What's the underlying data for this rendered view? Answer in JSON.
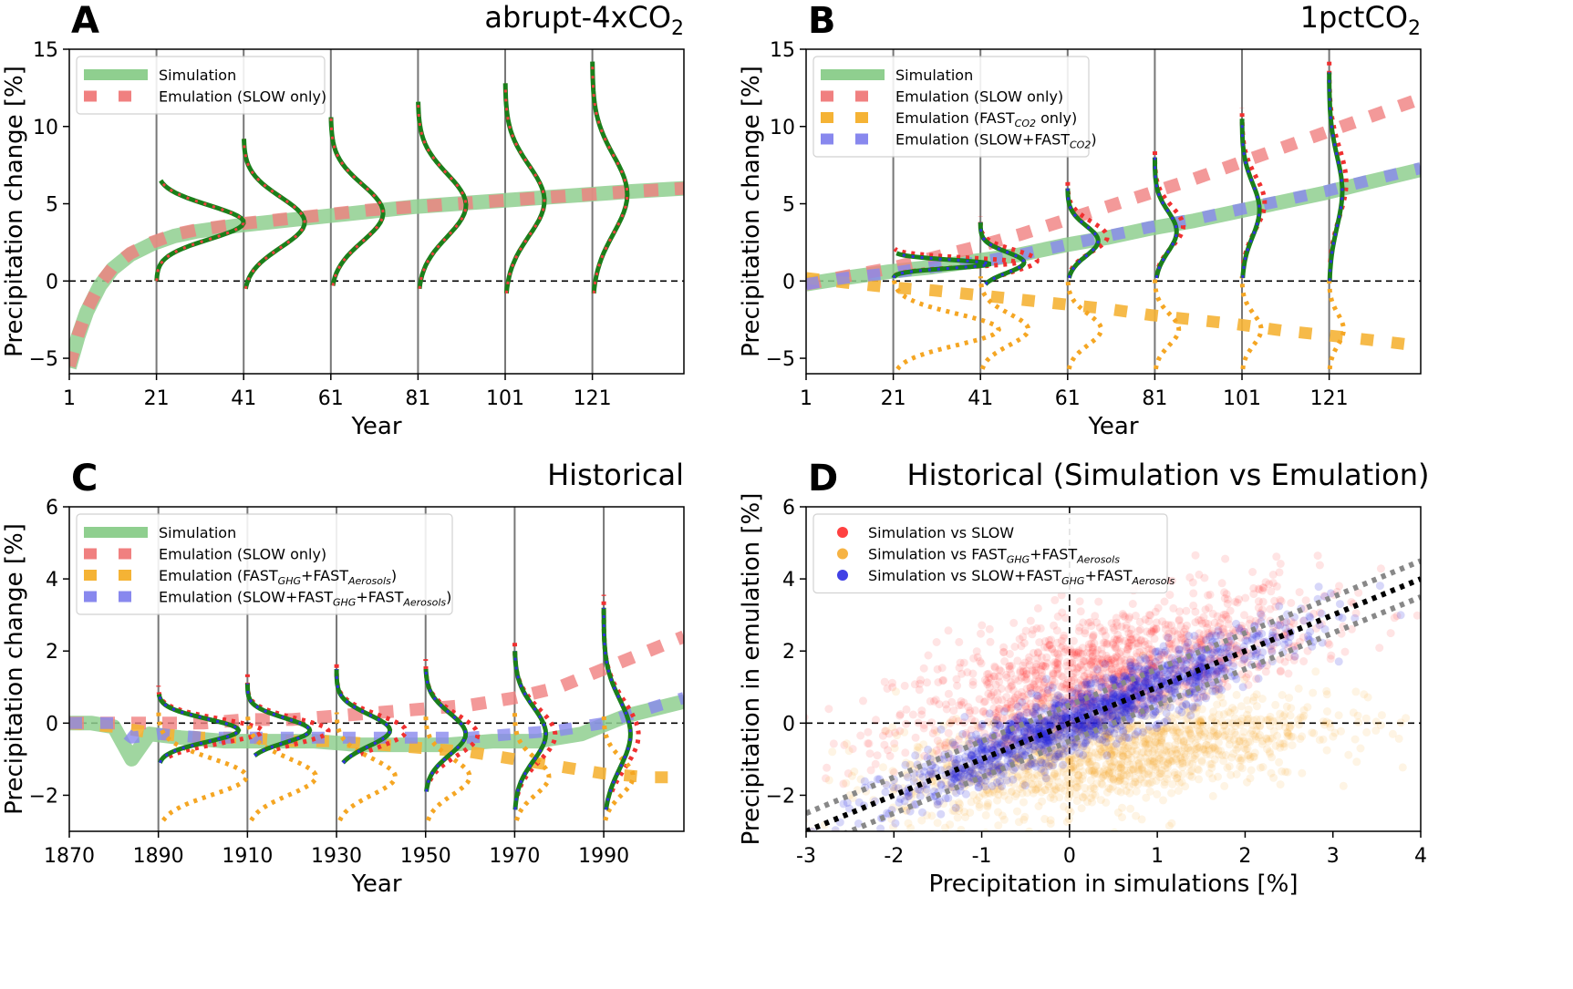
{
  "chart_data": [
    {
      "type": "line",
      "panel_letter": "A",
      "title": "abrupt-4xCO",
      "title_subscript": "2",
      "xlabel": "Year",
      "ylabel": "Precipitation change [%]",
      "xlim": [
        1,
        142
      ],
      "ylim": [
        -6,
        15
      ],
      "xticks": [
        1,
        21,
        41,
        61,
        81,
        101,
        121
      ],
      "yticks": [
        -5,
        0,
        5,
        10,
        15
      ],
      "legend_position": "top-left",
      "legend": [
        {
          "label": "Simulation",
          "sub": "",
          "suffix": ""
        },
        {
          "label": "Emulation (SLOW only)",
          "sub": "",
          "suffix": ""
        }
      ],
      "profile_years": [
        21,
        41,
        61,
        81,
        101,
        121
      ],
      "series": [
        {
          "name": "Simulation",
          "x": [
            1,
            3,
            5,
            8,
            11,
            15,
            20,
            25,
            30,
            40,
            50,
            60,
            70,
            80,
            90,
            100,
            110,
            120,
            130,
            142
          ],
          "y": [
            -5.6,
            -3.6,
            -2.0,
            -0.3,
            0.8,
            1.7,
            2.4,
            2.9,
            3.2,
            3.6,
            3.9,
            4.2,
            4.5,
            4.8,
            5.0,
            5.2,
            5.4,
            5.6,
            5.8,
            6.0
          ]
        },
        {
          "name": "Emulation (SLOW only)",
          "x": [
            1,
            3,
            5,
            8,
            11,
            15,
            20,
            25,
            30,
            40,
            50,
            60,
            70,
            80,
            90,
            100,
            110,
            120,
            130,
            142
          ],
          "y": [
            -5.5,
            -3.5,
            -1.9,
            -0.2,
            0.9,
            1.8,
            2.5,
            3.0,
            3.3,
            3.7,
            4.0,
            4.3,
            4.6,
            4.8,
            5.0,
            5.2,
            5.4,
            5.6,
            5.8,
            6.0
          ]
        }
      ],
      "profiles": [
        {
          "year": 21,
          "ymin": 0,
          "ymax": 6.5,
          "ypeak": 3.8,
          "width": 20
        },
        {
          "year": 41,
          "ymin": -0.5,
          "ymax": 9.2,
          "ypeak": 3.8,
          "width": 14
        },
        {
          "year": 61,
          "ymin": -0.3,
          "ymax": 10.6,
          "ypeak": 4.4,
          "width": 12
        },
        {
          "year": 81,
          "ymin": -0.5,
          "ymax": 11.6,
          "ypeak": 4.9,
          "width": 11
        },
        {
          "year": 101,
          "ymin": -0.8,
          "ymax": 12.8,
          "ypeak": 5.2,
          "width": 9
        },
        {
          "year": 121,
          "ymin": -0.8,
          "ymax": 14.2,
          "ypeak": 5.6,
          "width": 8
        }
      ]
    },
    {
      "type": "line",
      "panel_letter": "B",
      "title": "1pctCO",
      "title_subscript": "2",
      "xlabel": "Year",
      "ylabel": "Precipitation change [%]",
      "xlim": [
        1,
        142
      ],
      "ylim": [
        -6,
        15
      ],
      "xticks": [
        1,
        21,
        41,
        61,
        81,
        101,
        121
      ],
      "yticks": [
        -5,
        0,
        5,
        10,
        15
      ],
      "legend_position": "top-left",
      "legend": [
        {
          "label": "Simulation",
          "sub": "",
          "suffix": ""
        },
        {
          "label": "Emulation (SLOW only)",
          "sub": "",
          "suffix": ""
        },
        {
          "label": "Emulation (FAST",
          "sub": "CO2",
          "suffix": " only)"
        },
        {
          "label": "Emulation (SLOW+FAST",
          "sub": "CO2",
          "suffix": ")"
        }
      ],
      "profile_years": [
        21,
        41,
        61,
        81,
        101,
        121
      ],
      "series": [
        {
          "name": "Simulation",
          "x": [
            1,
            10,
            20,
            30,
            40,
            50,
            60,
            70,
            80,
            90,
            100,
            110,
            120,
            130,
            142
          ],
          "y": [
            -0.2,
            0.2,
            0.6,
            0.9,
            1.3,
            1.7,
            2.3,
            2.8,
            3.4,
            3.9,
            4.5,
            5.1,
            5.7,
            6.4,
            7.2
          ]
        },
        {
          "name": "Emulation (SLOW only)",
          "x": [
            1,
            10,
            20,
            30,
            40,
            50,
            60,
            70,
            80,
            90,
            100,
            110,
            120,
            130,
            142
          ],
          "y": [
            -0.2,
            0.3,
            0.8,
            1.5,
            2.2,
            3.0,
            3.9,
            4.8,
            5.7,
            6.6,
            7.6,
            8.6,
            9.6,
            10.6,
            11.8
          ]
        },
        {
          "name": "Emulation (FASTCO2 only)",
          "x": [
            1,
            10,
            20,
            30,
            40,
            50,
            60,
            70,
            80,
            90,
            100,
            110,
            120,
            130,
            142
          ],
          "y": [
            0.2,
            -0.1,
            -0.4,
            -0.6,
            -0.9,
            -1.2,
            -1.5,
            -1.8,
            -2.2,
            -2.5,
            -2.8,
            -3.2,
            -3.5,
            -3.8,
            -4.2
          ]
        },
        {
          "name": "Emulation (SLOW+FASTCO2)",
          "x": [
            1,
            10,
            20,
            30,
            40,
            50,
            60,
            70,
            80,
            90,
            100,
            110,
            120,
            130,
            142
          ],
          "y": [
            -0.2,
            0.2,
            0.5,
            0.9,
            1.2,
            1.7,
            2.3,
            2.9,
            3.5,
            4.0,
            4.6,
            5.2,
            5.8,
            6.5,
            7.3
          ]
        }
      ],
      "profiles": [
        {
          "year": 21,
          "ymin": 0.2,
          "ymax": 1.8,
          "ypeak": 1.1,
          "width": 22
        },
        {
          "year": 41,
          "ymin": -0.2,
          "ymax": 3.8,
          "ypeak": 1.2,
          "width": 10
        },
        {
          "year": 61,
          "ymin": 0.2,
          "ymax": 6.0,
          "ypeak": 2.6,
          "width": 7
        },
        {
          "year": 81,
          "ymin": 0.2,
          "ymax": 8.0,
          "ypeak": 3.2,
          "width": 5
        },
        {
          "year": 101,
          "ymin": 0.2,
          "ymax": 10.5,
          "ypeak": 4.6,
          "width": 4
        },
        {
          "year": 121,
          "ymin": 0.0,
          "ymax": 13.5,
          "ypeak": 5.8,
          "width": 3
        }
      ]
    },
    {
      "type": "line",
      "panel_letter": "C",
      "title": "Historical",
      "xlabel": "Year",
      "ylabel": "Precipitation change [%]",
      "xlim": [
        1870,
        2008
      ],
      "ylim": [
        -3,
        6
      ],
      "xticks": [
        1870,
        1890,
        1910,
        1930,
        1950,
        1970,
        1990
      ],
      "yticks": [
        -2,
        0,
        2,
        4,
        6
      ],
      "legend_position": "top-left",
      "legend": [
        {
          "label": "Simulation",
          "sub": "",
          "suffix": ""
        },
        {
          "label": "Emulation (SLOW only)",
          "sub": "",
          "suffix": ""
        },
        {
          "label": "Emulation (FAST",
          "sub": "GHG",
          "suffix": "+FAST",
          "sub2": "Aerosols",
          "suffix2": ")"
        },
        {
          "label": "Emulation (SLOW+FAST",
          "sub": "GHG",
          "suffix": "+FAST",
          "sub2": "Aerosols",
          "suffix2": ")"
        }
      ],
      "profile_years": [
        1890,
        1910,
        1930,
        1950,
        1970,
        1990
      ],
      "series": [
        {
          "name": "Simulation",
          "x": [
            1870,
            1875,
            1880,
            1884,
            1888,
            1895,
            1905,
            1915,
            1925,
            1935,
            1945,
            1955,
            1965,
            1975,
            1985,
            1995,
            2008
          ],
          "y": [
            0.0,
            0.0,
            -0.1,
            -1.0,
            -0.3,
            -0.4,
            -0.5,
            -0.5,
            -0.5,
            -0.6,
            -0.6,
            -0.6,
            -0.5,
            -0.5,
            -0.3,
            0.2,
            0.6
          ]
        },
        {
          "name": "Emulation (SLOW only)",
          "x": [
            1870,
            1880,
            1890,
            1900,
            1910,
            1920,
            1930,
            1940,
            1950,
            1960,
            1970,
            1980,
            1990,
            2000,
            2008
          ],
          "y": [
            0.0,
            0.0,
            0.0,
            0.0,
            0.1,
            0.1,
            0.2,
            0.3,
            0.4,
            0.5,
            0.7,
            1.0,
            1.5,
            2.0,
            2.4
          ]
        },
        {
          "name": "Emulation (FASTGHG+FASTAerosols)",
          "x": [
            1870,
            1880,
            1890,
            1900,
            1910,
            1920,
            1930,
            1940,
            1950,
            1960,
            1970,
            1980,
            1990,
            2000,
            2008
          ],
          "y": [
            0.0,
            -0.1,
            -0.3,
            -0.4,
            -0.4,
            -0.5,
            -0.5,
            -0.6,
            -0.7,
            -0.8,
            -1.0,
            -1.2,
            -1.4,
            -1.5,
            -1.5
          ]
        },
        {
          "name": "Emulation (SLOW+FASTGHG+FASTAerosols)",
          "x": [
            1870,
            1880,
            1884,
            1890,
            1900,
            1910,
            1920,
            1930,
            1940,
            1950,
            1960,
            1970,
            1980,
            1990,
            2000,
            2008
          ],
          "y": [
            0.0,
            0.0,
            -0.4,
            -0.3,
            -0.4,
            -0.4,
            -0.4,
            -0.4,
            -0.4,
            -0.4,
            -0.4,
            -0.3,
            -0.2,
            0.0,
            0.4,
            0.7
          ]
        }
      ],
      "profiles": [
        {
          "year": 1890,
          "ymin": -1.1,
          "ymax": 0.8,
          "ypeak": -0.2,
          "width": 18
        },
        {
          "year": 1910,
          "ymin": -0.9,
          "ymax": 1.1,
          "ypeak": -0.2,
          "width": 14
        },
        {
          "year": 1930,
          "ymin": -1.1,
          "ymax": 1.5,
          "ypeak": -0.2,
          "width": 12
        },
        {
          "year": 1950,
          "ymin": -1.9,
          "ymax": 1.5,
          "ypeak": -0.3,
          "width": 9
        },
        {
          "year": 1970,
          "ymin": -2.4,
          "ymax": 2.0,
          "ypeak": -0.3,
          "width": 7
        },
        {
          "year": 1990,
          "ymin": -2.4,
          "ymax": 3.2,
          "ypeak": -0.3,
          "width": 6
        }
      ]
    },
    {
      "type": "scatter",
      "panel_letter": "D",
      "title": "Historical (Simulation vs Emulation)",
      "xlabel": "Precipitation in simulations [%]",
      "ylabel": "Precipitation in emulation [%]",
      "xlim": [
        -3,
        4
      ],
      "ylim": [
        -3,
        6
      ],
      "xticks": [
        -3,
        -2,
        -1,
        0,
        1,
        2,
        3,
        4
      ],
      "yticks": [
        -2,
        0,
        2,
        4,
        6
      ],
      "legend_position": "top-left",
      "legend": [
        {
          "label": "Simulation vs SLOW",
          "sub": "",
          "suffix": ""
        },
        {
          "label": "Simulation vs FAST",
          "sub": "GHG",
          "suffix": "+FAST",
          "sub2": "Aerosols",
          "suffix2": ""
        },
        {
          "label": "Simulation vs SLOW+FAST",
          "sub": "GHG",
          "suffix": "+FAST",
          "sub2": "Aerosols",
          "suffix2": ""
        }
      ],
      "series": [
        {
          "name": "Simulation vs SLOW",
          "slope": 0.6,
          "intercept": 1.0,
          "xspread": [
            -2.6,
            3.4
          ],
          "yspread": 1.2,
          "n": 1400
        },
        {
          "name": "Simulation vs FASTGHG+FASTAerosols",
          "slope": 0.35,
          "intercept": -1.0,
          "xspread": [
            -2.6,
            3.4
          ],
          "yspread": 0.9,
          "n": 1400
        },
        {
          "name": "Simulation vs SLOW+FASTGHG+FASTAerosols",
          "slope": 1.0,
          "intercept": 0.0,
          "xspread": [
            -2.6,
            3.0
          ],
          "yspread": 0.45,
          "n": 1400
        }
      ],
      "reference_lines": [
        {
          "slope": 1,
          "intercept": 0,
          "style": "black dotted"
        },
        {
          "slope": 1,
          "intercept": 0.5,
          "style": "gray dotted"
        },
        {
          "slope": 1,
          "intercept": -0.5,
          "style": "gray dotted"
        }
      ]
    }
  ],
  "colors": {
    "simulation": "#8fcf8f",
    "slow": "#f08080",
    "fast": "#f5b335",
    "combined": "#8888ee",
    "profile_green": "#1a7f1a",
    "scatter_red": "#ff2020",
    "scatter_orange": "#f5a623",
    "scatter_blue": "#2020e0"
  }
}
